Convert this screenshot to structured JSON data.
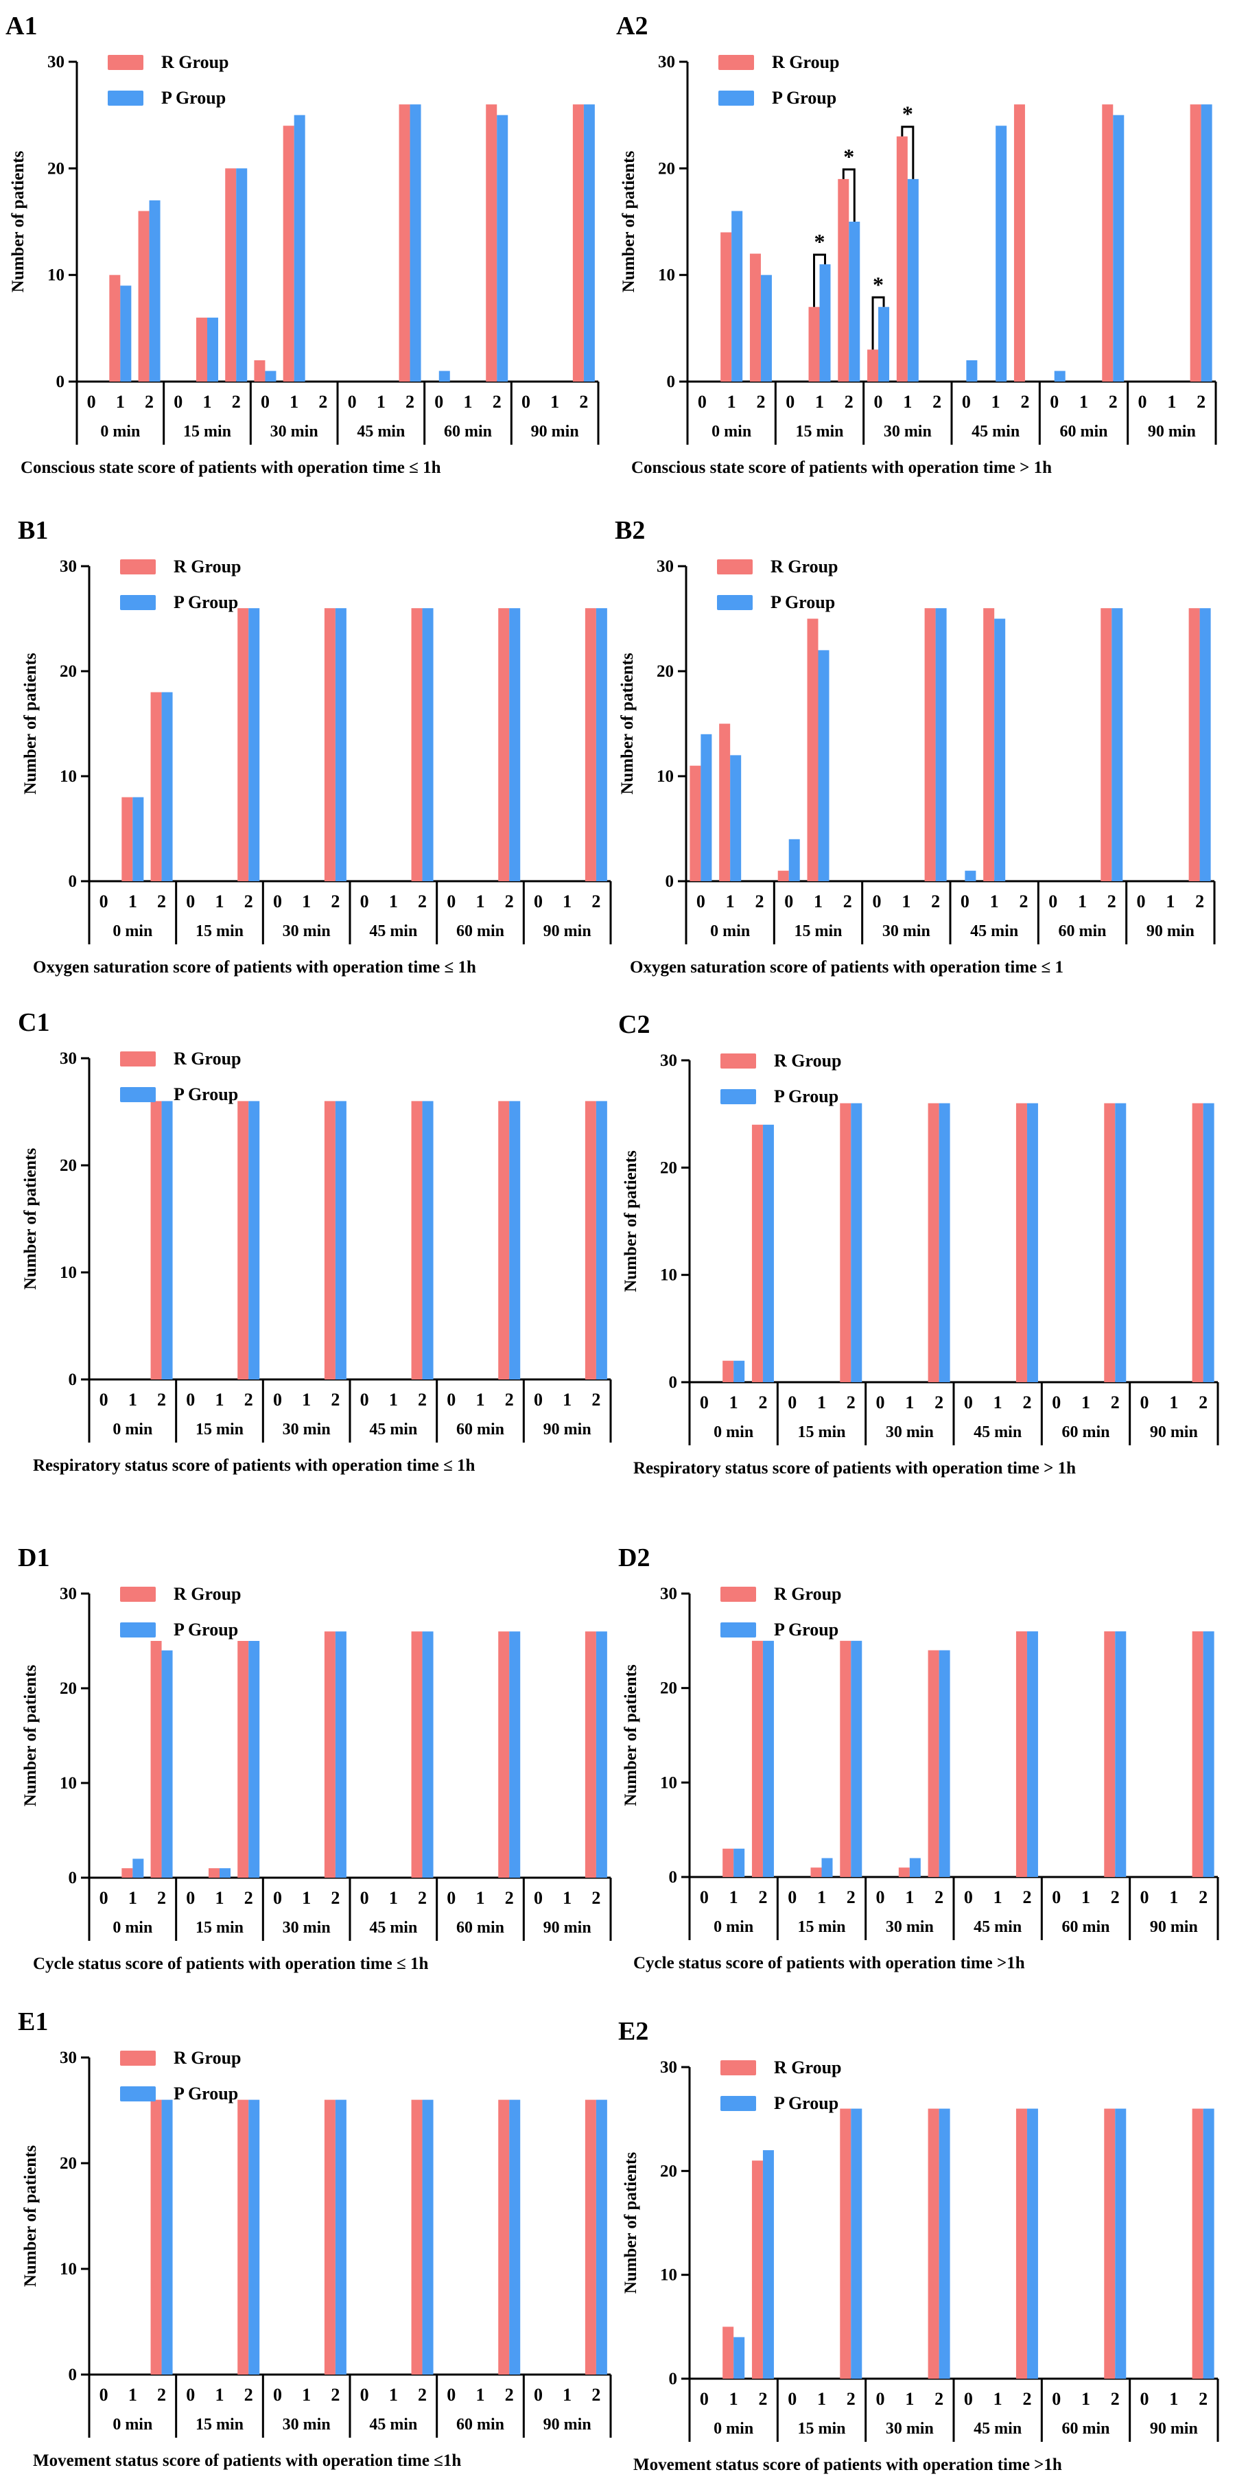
{
  "colors": {
    "R Group": "#f47a78",
    "P Group": "#4c9cf3",
    "axis": "#000000"
  },
  "chart_data": [
    {
      "label": "A1",
      "type": "bar",
      "ylabel": "Number of patients",
      "ylim": [
        0,
        30
      ],
      "yticks": [
        "0",
        "10",
        "20",
        "30"
      ],
      "score_labels": [
        "0",
        "1",
        "2"
      ],
      "time_labels": [
        "0 min",
        "15 min",
        "30 min",
        "45 min",
        "60 min",
        "90 min"
      ],
      "caption": "Conscious state score of patients with operation time ≤ 1h",
      "legend": [
        "R Group",
        "P Group"
      ],
      "legend_position": "top-left",
      "series": [
        {
          "name": "R Group",
          "values": [
            [
              0,
              10,
              16
            ],
            [
              0,
              6,
              20
            ],
            [
              2,
              24,
              0
            ],
            [
              0,
              0,
              26
            ],
            [
              0,
              0,
              26
            ],
            [
              0,
              0,
              26
            ]
          ]
        },
        {
          "name": "P Group",
          "values": [
            [
              0,
              9,
              17
            ],
            [
              0,
              6,
              20
            ],
            [
              1,
              25,
              0
            ],
            [
              0,
              0,
              26
            ],
            [
              1,
              0,
              25
            ],
            [
              0,
              0,
              26
            ]
          ]
        }
      ],
      "significance": []
    },
    {
      "label": "A2",
      "type": "bar",
      "ylabel": "Number of patients",
      "ylim": [
        0,
        30
      ],
      "yticks": [
        "0",
        "10",
        "20",
        "30"
      ],
      "score_labels": [
        "0",
        "1",
        "2"
      ],
      "time_labels": [
        "0 min",
        "15 min",
        "30 min",
        "45 min",
        "60 min",
        "90 min"
      ],
      "caption": "Conscious state score of patients with operation time > 1h",
      "legend": [
        "R Group",
        "P Group"
      ],
      "legend_position": "top-left",
      "series": [
        {
          "name": "R Group",
          "values": [
            [
              0,
              14,
              12
            ],
            [
              0,
              7,
              19
            ],
            [
              3,
              23,
              0
            ],
            [
              0,
              0,
              26
            ],
            [
              0,
              0,
              26
            ],
            [
              0,
              0,
              26
            ]
          ]
        },
        {
          "name": "P Group",
          "values": [
            [
              0,
              16,
              10
            ],
            [
              0,
              11,
              15
            ],
            [
              7,
              19,
              0
            ],
            [
              2,
              24,
              0
            ],
            [
              1,
              0,
              25
            ],
            [
              0,
              0,
              26
            ]
          ]
        }
      ],
      "significance": [
        {
          "time": 1,
          "score": 1,
          "text": "*"
        },
        {
          "time": 1,
          "score": 2,
          "text": "*"
        },
        {
          "time": 2,
          "score": 0,
          "text": "*"
        },
        {
          "time": 2,
          "score": 1,
          "text": "*"
        }
      ]
    },
    {
      "label": "B1",
      "type": "bar",
      "ylabel": "Number of patients",
      "ylim": [
        0,
        30
      ],
      "yticks": [
        "0",
        "10",
        "20",
        "30"
      ],
      "score_labels": [
        "0",
        "1",
        "2"
      ],
      "time_labels": [
        "0 min",
        "15 min",
        "30 min",
        "45 min",
        "60 min",
        "90 min"
      ],
      "caption": "Oxygen saturation score of patients with operation time ≤ 1h",
      "legend": [
        "R Group",
        "P Group"
      ],
      "legend_position": "top-left",
      "series": [
        {
          "name": "R Group",
          "values": [
            [
              0,
              8,
              18
            ],
            [
              0,
              0,
              26
            ],
            [
              0,
              0,
              26
            ],
            [
              0,
              0,
              26
            ],
            [
              0,
              0,
              26
            ],
            [
              0,
              0,
              26
            ]
          ]
        },
        {
          "name": "P Group",
          "values": [
            [
              0,
              8,
              18
            ],
            [
              0,
              0,
              26
            ],
            [
              0,
              0,
              26
            ],
            [
              0,
              0,
              26
            ],
            [
              0,
              0,
              26
            ],
            [
              0,
              0,
              26
            ]
          ]
        }
      ],
      "significance": []
    },
    {
      "label": "B2",
      "type": "bar",
      "ylabel": "Number of patients",
      "ylim": [
        0,
        30
      ],
      "yticks": [
        "0",
        "10",
        "20",
        "30"
      ],
      "score_labels": [
        "0",
        "1",
        "2"
      ],
      "time_labels": [
        "0 min",
        "15 min",
        "30 min",
        "45 min",
        "60 min",
        "90 min"
      ],
      "caption": "Oxygen saturation score of patients with operation time ≤ 1",
      "legend": [
        "R Group",
        "P Group"
      ],
      "legend_position": "top-left",
      "series": [
        {
          "name": "R Group",
          "values": [
            [
              11,
              15,
              0
            ],
            [
              1,
              25,
              0
            ],
            [
              0,
              0,
              26
            ],
            [
              0,
              26,
              0
            ],
            [
              0,
              0,
              26
            ],
            [
              0,
              0,
              26
            ]
          ]
        },
        {
          "name": "P Group",
          "values": [
            [
              14,
              12,
              0
            ],
            [
              4,
              22,
              0
            ],
            [
              0,
              0,
              26
            ],
            [
              1,
              25,
              0
            ],
            [
              0,
              0,
              26
            ],
            [
              0,
              0,
              26
            ]
          ]
        }
      ],
      "significance": []
    },
    {
      "label": "C1",
      "type": "bar",
      "ylabel": "Number of patients",
      "ylim": [
        0,
        30
      ],
      "yticks": [
        "0",
        "10",
        "20",
        "30"
      ],
      "score_labels": [
        "0",
        "1",
        "2"
      ],
      "time_labels": [
        "0 min",
        "15 min",
        "30 min",
        "45 min",
        "60 min",
        "90 min"
      ],
      "caption": "Respiratory status score of patients with operation time ≤ 1h",
      "legend": [
        "R Group",
        "P Group"
      ],
      "legend_position": "top-left",
      "series": [
        {
          "name": "R Group",
          "values": [
            [
              0,
              0,
              26
            ],
            [
              0,
              0,
              26
            ],
            [
              0,
              0,
              26
            ],
            [
              0,
              0,
              26
            ],
            [
              0,
              0,
              26
            ],
            [
              0,
              0,
              26
            ]
          ]
        },
        {
          "name": "P Group",
          "values": [
            [
              0,
              0,
              26
            ],
            [
              0,
              0,
              26
            ],
            [
              0,
              0,
              26
            ],
            [
              0,
              0,
              26
            ],
            [
              0,
              0,
              26
            ],
            [
              0,
              0,
              26
            ]
          ]
        }
      ],
      "significance": []
    },
    {
      "label": "C2",
      "type": "bar",
      "ylabel": "Number of patients",
      "ylim": [
        0,
        30
      ],
      "yticks": [
        "0",
        "10",
        "20",
        "30"
      ],
      "score_labels": [
        "0",
        "1",
        "2"
      ],
      "time_labels": [
        "0 min",
        "15 min",
        "30 min",
        "45 min",
        "60 min",
        "90 min"
      ],
      "caption": "Respiratory status score of patients with operation time > 1h",
      "legend": [
        "R Group",
        "P Group"
      ],
      "legend_position": "top-left",
      "series": [
        {
          "name": "R Group",
          "values": [
            [
              0,
              2,
              24
            ],
            [
              0,
              0,
              26
            ],
            [
              0,
              0,
              26
            ],
            [
              0,
              0,
              26
            ],
            [
              0,
              0,
              26
            ],
            [
              0,
              0,
              26
            ]
          ]
        },
        {
          "name": "P Group",
          "values": [
            [
              0,
              2,
              24
            ],
            [
              0,
              0,
              26
            ],
            [
              0,
              0,
              26
            ],
            [
              0,
              0,
              26
            ],
            [
              0,
              0,
              26
            ],
            [
              0,
              0,
              26
            ]
          ]
        }
      ],
      "significance": []
    },
    {
      "label": "D1",
      "type": "bar",
      "ylabel": "Number of patients",
      "ylim": [
        0,
        30
      ],
      "yticks": [
        "0",
        "10",
        "20",
        "30"
      ],
      "score_labels": [
        "0",
        "1",
        "2"
      ],
      "time_labels": [
        "0 min",
        "15 min",
        "30 min",
        "45 min",
        "60 min",
        "90 min"
      ],
      "caption": "Cycle status score of patients with operation time ≤ 1h",
      "legend": [
        "R Group",
        "P Group"
      ],
      "legend_position": "top-left",
      "series": [
        {
          "name": "R Group",
          "values": [
            [
              0,
              1,
              25
            ],
            [
              0,
              1,
              25
            ],
            [
              0,
              0,
              26
            ],
            [
              0,
              0,
              26
            ],
            [
              0,
              0,
              26
            ],
            [
              0,
              0,
              26
            ]
          ]
        },
        {
          "name": "P Group",
          "values": [
            [
              0,
              2,
              24
            ],
            [
              0,
              1,
              25
            ],
            [
              0,
              0,
              26
            ],
            [
              0,
              0,
              26
            ],
            [
              0,
              0,
              26
            ],
            [
              0,
              0,
              26
            ]
          ]
        }
      ],
      "significance": []
    },
    {
      "label": "D2",
      "type": "bar",
      "ylabel": "Number of patients",
      "ylim": [
        0,
        30
      ],
      "yticks": [
        "0",
        "10",
        "20",
        "30"
      ],
      "score_labels": [
        "0",
        "1",
        "2"
      ],
      "time_labels": [
        "0 min",
        "15 min",
        "30 min",
        "45 min",
        "60 min",
        "90 min"
      ],
      "caption": "Cycle status score of patients with operation time >1h",
      "legend": [
        "R Group",
        "P Group"
      ],
      "legend_position": "top-left",
      "series": [
        {
          "name": "R Group",
          "values": [
            [
              0,
              3,
              25
            ],
            [
              0,
              1,
              25
            ],
            [
              0,
              1,
              24
            ],
            [
              0,
              0,
              26
            ],
            [
              0,
              0,
              26
            ],
            [
              0,
              0,
              26
            ]
          ]
        },
        {
          "name": "P Group",
          "values": [
            [
              0,
              3,
              25
            ],
            [
              0,
              2,
              25
            ],
            [
              0,
              2,
              24
            ],
            [
              0,
              0,
              26
            ],
            [
              0,
              0,
              26
            ],
            [
              0,
              0,
              26
            ]
          ]
        }
      ],
      "significance": []
    },
    {
      "label": "E1",
      "type": "bar",
      "ylabel": "Number of patients",
      "ylim": [
        0,
        30
      ],
      "yticks": [
        "0",
        "10",
        "20",
        "30"
      ],
      "score_labels": [
        "0",
        "1",
        "2"
      ],
      "time_labels": [
        "0 min",
        "15 min",
        "30 min",
        "45 min",
        "60 min",
        "90 min"
      ],
      "caption": "Movement status score of patients with operation time ≤1h",
      "legend": [
        "R Group",
        "P Group"
      ],
      "legend_position": "top-left",
      "series": [
        {
          "name": "R Group",
          "values": [
            [
              0,
              0,
              26
            ],
            [
              0,
              0,
              26
            ],
            [
              0,
              0,
              26
            ],
            [
              0,
              0,
              26
            ],
            [
              0,
              0,
              26
            ],
            [
              0,
              0,
              26
            ]
          ]
        },
        {
          "name": "P Group",
          "values": [
            [
              0,
              0,
              26
            ],
            [
              0,
              0,
              26
            ],
            [
              0,
              0,
              26
            ],
            [
              0,
              0,
              26
            ],
            [
              0,
              0,
              26
            ],
            [
              0,
              0,
              26
            ]
          ]
        }
      ],
      "significance": []
    },
    {
      "label": "E2",
      "type": "bar",
      "ylabel": "Number of patients",
      "ylim": [
        0,
        30
      ],
      "yticks": [
        "0",
        "10",
        "20",
        "30"
      ],
      "score_labels": [
        "0",
        "1",
        "2"
      ],
      "time_labels": [
        "0 min",
        "15 min",
        "30 min",
        "45 min",
        "60 min",
        "90 min"
      ],
      "caption": "Movement status score of patients with operation time >1h",
      "legend": [
        "R Group",
        "P Group"
      ],
      "legend_position": "top-left",
      "series": [
        {
          "name": "R Group",
          "values": [
            [
              0,
              5,
              21
            ],
            [
              0,
              0,
              26
            ],
            [
              0,
              0,
              26
            ],
            [
              0,
              0,
              26
            ],
            [
              0,
              0,
              26
            ],
            [
              0,
              0,
              26
            ]
          ]
        },
        {
          "name": "P Group",
          "values": [
            [
              0,
              4,
              22
            ],
            [
              0,
              0,
              26
            ],
            [
              0,
              0,
              26
            ],
            [
              0,
              0,
              26
            ],
            [
              0,
              0,
              26
            ],
            [
              0,
              0,
              26
            ]
          ]
        }
      ],
      "significance": []
    }
  ]
}
